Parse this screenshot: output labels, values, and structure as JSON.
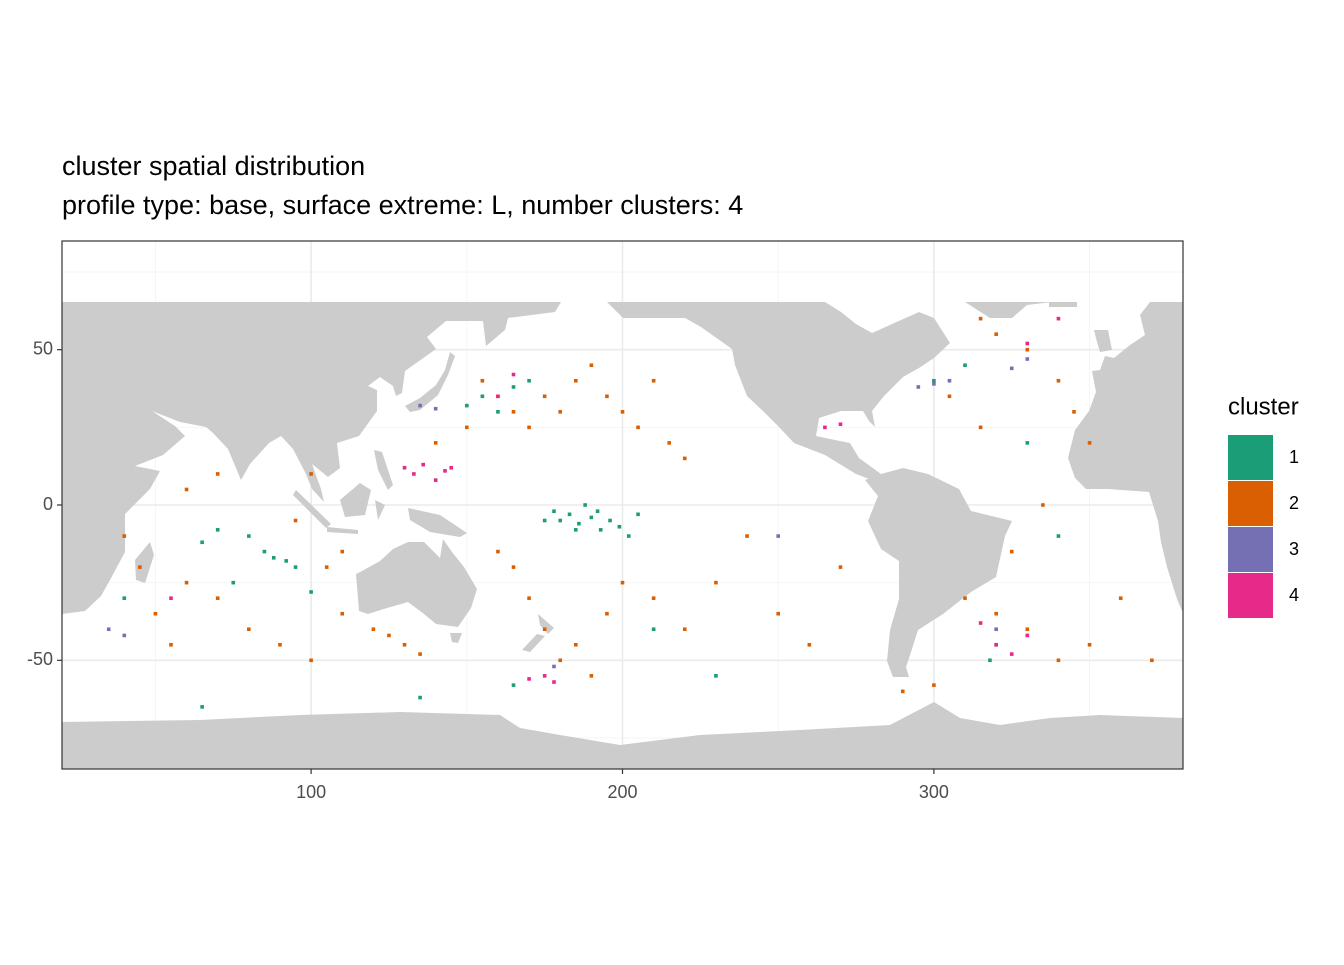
{
  "chart_data": {
    "type": "scatter",
    "title": "cluster spatial distribution",
    "subtitle": "profile type: base, surface extreme: L, number clusters: 4",
    "xlim": [
      20,
      380
    ],
    "ylim": [
      -85,
      85
    ],
    "xticks": [
      100,
      200,
      300
    ],
    "yticks": [
      -50,
      0,
      50
    ],
    "xminor": [
      50,
      150,
      250,
      350
    ],
    "yminor": [
      -75,
      -25,
      25,
      75
    ],
    "grid": true,
    "legend_title": "cluster",
    "legend_position": "right",
    "series": [
      {
        "name": "1",
        "color": "#1b9e77",
        "x": [
          180,
          183,
          186,
          190,
          193,
          196,
          199,
          178,
          185,
          192,
          202,
          175,
          188,
          205,
          85,
          88,
          92,
          80,
          95,
          70,
          65,
          75,
          100,
          150,
          155,
          160,
          165,
          170,
          300,
          310,
          330,
          340,
          320,
          318,
          135,
          165,
          65,
          40,
          210,
          230
        ],
        "y": [
          -5,
          -3,
          -6,
          -4,
          -8,
          -5,
          -7,
          -2,
          -8,
          -2,
          -10,
          -5,
          0,
          -3,
          -15,
          -17,
          -18,
          -10,
          -20,
          -8,
          -12,
          -25,
          -28,
          32,
          35,
          30,
          38,
          40,
          40,
          45,
          20,
          -10,
          -45,
          -50,
          -62,
          -58,
          -65,
          -30,
          -40,
          -55
        ]
      },
      {
        "name": "2",
        "color": "#d95f02",
        "x": [
          40,
          45,
          50,
          55,
          60,
          70,
          80,
          90,
          100,
          110,
          120,
          125,
          130,
          135,
          105,
          110,
          95,
          100,
          70,
          60,
          140,
          150,
          155,
          160,
          165,
          170,
          175,
          180,
          185,
          190,
          195,
          200,
          205,
          210,
          215,
          220,
          160,
          165,
          170,
          175,
          180,
          185,
          190,
          195,
          200,
          210,
          220,
          230,
          240,
          250,
          260,
          270,
          290,
          300,
          310,
          320,
          330,
          340,
          350,
          360,
          370,
          315,
          320,
          330,
          340,
          345,
          350,
          335,
          325,
          305,
          315
        ],
        "y": [
          -10,
          -20,
          -35,
          -45,
          -25,
          -30,
          -40,
          -45,
          -50,
          -35,
          -40,
          -42,
          -45,
          -48,
          -20,
          -15,
          -5,
          10,
          10,
          5,
          20,
          25,
          40,
          35,
          30,
          25,
          35,
          30,
          40,
          45,
          35,
          30,
          25,
          40,
          20,
          15,
          -15,
          -20,
          -30,
          -40,
          -50,
          -45,
          -55,
          -35,
          -25,
          -30,
          -40,
          -25,
          -10,
          -35,
          -45,
          -20,
          -60,
          -58,
          -30,
          -35,
          -40,
          -50,
          -45,
          -30,
          -50,
          60,
          55,
          50,
          40,
          30,
          20,
          0,
          -15,
          35,
          25
        ]
      },
      {
        "name": "3",
        "color": "#7570b3",
        "x": [
          135,
          140,
          295,
          300,
          305,
          325,
          330,
          35,
          40,
          320,
          250,
          178
        ],
        "y": [
          32,
          31,
          38,
          39,
          40,
          44,
          47,
          -40,
          -42,
          -40,
          -10,
          -52
        ]
      },
      {
        "name": "4",
        "color": "#e7298a",
        "x": [
          130,
          133,
          136,
          140,
          143,
          145,
          160,
          165,
          320,
          325,
          330,
          315,
          175,
          178,
          170,
          265,
          270,
          55,
          330,
          340
        ],
        "y": [
          12,
          10,
          13,
          8,
          11,
          12,
          35,
          42,
          -45,
          -48,
          -42,
          -38,
          -55,
          -57,
          -56,
          25,
          26,
          -30,
          52,
          60
        ]
      }
    ]
  }
}
